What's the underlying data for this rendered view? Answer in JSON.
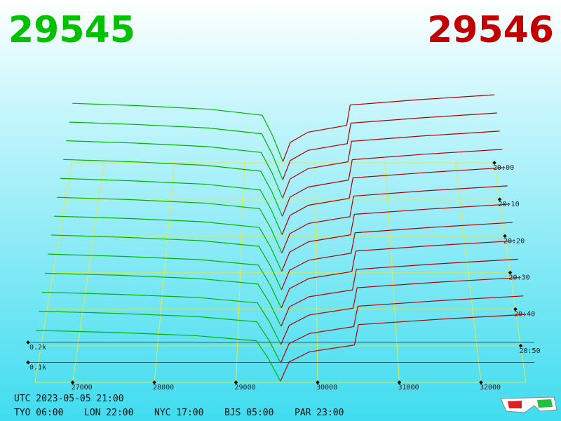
{
  "chart_data": {
    "type": "depth3d",
    "bid_label": "29545",
    "ask_label": "29546",
    "xlim": [
      26540,
      32550
    ],
    "xticks": [
      27000,
      28000,
      29000,
      30000,
      31000,
      32000
    ],
    "tlim": [
      0,
      60
    ],
    "tticks": [
      {
        "value": 0,
        "label": "20:00"
      },
      {
        "value": 10,
        "label": "20:10"
      },
      {
        "value": 20,
        "label": "20:20"
      },
      {
        "value": 30,
        "label": "20:30"
      },
      {
        "value": 40,
        "label": "20:40"
      },
      {
        "value": 50,
        "label": "20:50"
      }
    ],
    "zticks": [
      {
        "value": 100,
        "label": "0.1k"
      },
      {
        "value": 200,
        "label": "0.2k"
      }
    ],
    "bid_prices": [
      26550,
      27500,
      28500,
      29250,
      29400,
      29545
    ],
    "ask_prices": [
      29546,
      29650,
      29900,
      30450,
      30500,
      31500,
      32550
    ],
    "bid_color": "#00b400",
    "ask_color": "#b00000",
    "bids": [
      {
        "t": 0,
        "values": [
          350,
          336,
          315,
          280,
          158,
          7
        ]
      },
      {
        "t": 5,
        "values": [
          342,
          328,
          308,
          274,
          154,
          7
        ]
      },
      {
        "t": 10,
        "values": [
          335,
          322,
          302,
          268,
          151,
          7
        ]
      },
      {
        "t": 15,
        "values": [
          328,
          315,
          295,
          262,
          148,
          7
        ]
      },
      {
        "t": 20,
        "values": [
          320,
          307,
          288,
          256,
          144,
          6
        ]
      },
      {
        "t": 25,
        "values": [
          312,
          300,
          281,
          250,
          140,
          6
        ]
      },
      {
        "t": 30,
        "values": [
          305,
          293,
          275,
          244,
          137,
          6
        ]
      },
      {
        "t": 35,
        "values": [
          298,
          286,
          268,
          238,
          134,
          6
        ]
      },
      {
        "t": 40,
        "values": [
          290,
          278,
          261,
          232,
          130,
          6
        ]
      },
      {
        "t": 45,
        "values": [
          282,
          271,
          254,
          226,
          127,
          6
        ]
      },
      {
        "t": 50,
        "values": [
          275,
          264,
          248,
          220,
          124,
          6
        ]
      },
      {
        "t": 55,
        "values": [
          268,
          257,
          241,
          214,
          121,
          5
        ]
      },
      {
        "t": 60,
        "values": [
          260,
          250,
          234,
          208,
          117,
          5
        ]
      }
    ],
    "asks": [
      {
        "t": 0,
        "values": [
          8,
          120,
          180,
          220,
          340,
          372,
          400
        ]
      },
      {
        "t": 5,
        "values": [
          8,
          119,
          178,
          217,
          336,
          367,
          395
        ]
      },
      {
        "t": 10,
        "values": [
          8,
          117,
          176,
          215,
          332,
          363,
          390
        ]
      },
      {
        "t": 15,
        "values": [
          8,
          116,
          173,
          212,
          327,
          358,
          385
        ]
      },
      {
        "t": 20,
        "values": [
          8,
          114,
          171,
          209,
          323,
          353,
          380
        ]
      },
      {
        "t": 25,
        "values": [
          8,
          113,
          169,
          206,
          319,
          349,
          375
        ]
      },
      {
        "t": 30,
        "values": [
          7,
          111,
          167,
          204,
          315,
          344,
          370
        ]
      },
      {
        "t": 35,
        "values": [
          7,
          110,
          164,
          201,
          310,
          339,
          365
        ]
      },
      {
        "t": 40,
        "values": [
          7,
          108,
          162,
          198,
          306,
          335,
          360
        ]
      },
      {
        "t": 45,
        "values": [
          7,
          107,
          160,
          195,
          302,
          330,
          355
        ]
      },
      {
        "t": 50,
        "values": [
          7,
          105,
          158,
          193,
          298,
          326,
          350
        ]
      },
      {
        "t": 55,
        "values": [
          7,
          104,
          155,
          190,
          293,
          321,
          345
        ]
      },
      {
        "t": 60,
        "values": [
          7,
          102,
          153,
          187,
          289,
          316,
          340
        ]
      }
    ]
  },
  "footer": {
    "utc": "UTC 2023-05-05 21:00",
    "clocks": [
      "TYO 06:00",
      "LON 22:00",
      "NYC 17:00",
      "BJS 05:00",
      "PAR 23:00"
    ]
  }
}
